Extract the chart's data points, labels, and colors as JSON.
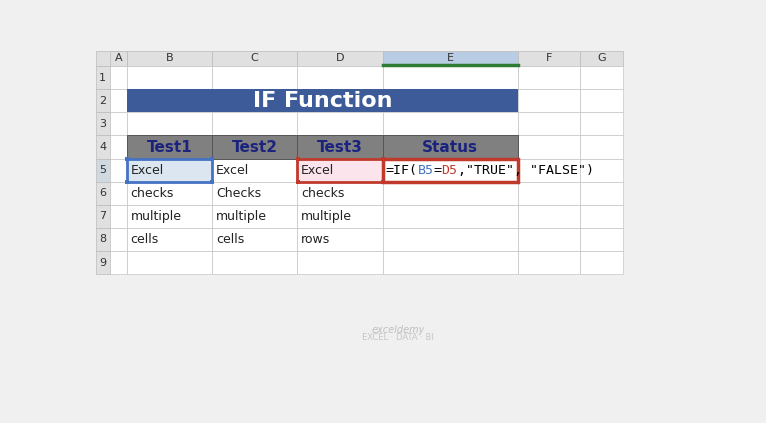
{
  "title": "IF Function",
  "title_bg": "#3d5a99",
  "title_text_color": "#ffffff",
  "header_bg": "#808080",
  "header_text_color": "#1a237e",
  "headers": [
    "Test1",
    "Test2",
    "Test3",
    "Status"
  ],
  "rows": [
    [
      "Excel",
      "Excel",
      "Excel"
    ],
    [
      "checks",
      "Checks",
      "checks"
    ],
    [
      "multiple",
      "multiple",
      "multiple"
    ],
    [
      "cells",
      "cells",
      "rows"
    ]
  ],
  "col_letters": [
    "A",
    "B",
    "C",
    "D",
    "E",
    "F",
    "G"
  ],
  "row_numbers": [
    "1",
    "2",
    "3",
    "4",
    "5",
    "6",
    "7",
    "8",
    "9"
  ],
  "formula_text_parts": [
    {
      "text": "=IF(",
      "color": "#000000"
    },
    {
      "text": "B5",
      "color": "#4472c4"
    },
    {
      "text": "=",
      "color": "#000000"
    },
    {
      "text": "D5",
      "color": "#c0392b"
    },
    {
      "text": ",\"TRUE\", \"FALSE\")",
      "color": "#000000"
    }
  ],
  "cell_b5_bg": "#dce6f1",
  "cell_d5_bg": "#fce4ec",
  "cell_e5_border_color": "#c0392b",
  "cell_b5_border_color": "#4472c4",
  "cell_d5_border_color": "#c0392b",
  "bg_color": "#f0f0f0",
  "grid_color": "#bbbbbb",
  "col_header_bg": "#e0e0e0",
  "col_e_header_bg": "#b8cce4",
  "green_bar_color": "#2e7d32",
  "row5_num_bg": "#d0d8e0"
}
